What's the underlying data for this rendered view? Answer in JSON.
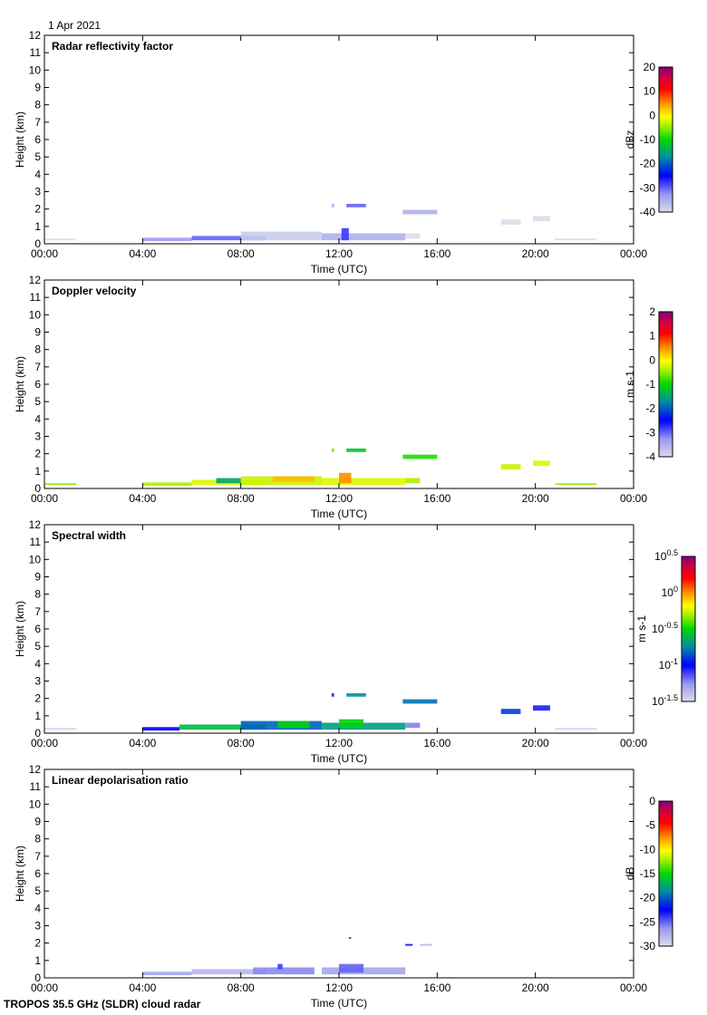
{
  "date_label": "1 Apr 2021",
  "footer_label": "TROPOS 35.5 GHz (SLDR) cloud radar",
  "chart_data": [
    {
      "type": "heatmap",
      "title": "Radar reflectivity factor",
      "xlabel": "Time (UTC)",
      "ylabel": "Height (km)",
      "xlim": [
        0,
        24
      ],
      "ylim": [
        0,
        12
      ],
      "xticks": [
        "00:00",
        "04:00",
        "08:00",
        "12:00",
        "16:00",
        "20:00",
        "00:00"
      ],
      "yticks": [
        "0",
        "1",
        "2",
        "3",
        "4",
        "5",
        "6",
        "7",
        "8",
        "9",
        "10",
        "11",
        "12"
      ],
      "colorbar": {
        "label": "dBz",
        "range": [
          -40,
          20
        ],
        "scale": "linear",
        "ticks": [
          "-40",
          "-30",
          "-20",
          "-10",
          "0",
          "10",
          "20"
        ]
      },
      "echoes": [
        [
          0.0,
          1.3,
          0.2,
          0.3,
          -42
        ],
        [
          4.0,
          6.0,
          0.15,
          0.35,
          -33
        ],
        [
          6.0,
          9.0,
          0.2,
          0.45,
          -30
        ],
        [
          8.0,
          11.3,
          0.2,
          0.7,
          -38
        ],
        [
          11.3,
          14.7,
          0.2,
          0.6,
          -35
        ],
        [
          12.1,
          12.4,
          0.2,
          0.9,
          -28
        ],
        [
          14.7,
          15.3,
          0.3,
          0.6,
          -41
        ],
        [
          11.7,
          11.8,
          2.1,
          2.3,
          -35
        ],
        [
          12.3,
          13.1,
          2.1,
          2.3,
          -30
        ],
        [
          14.6,
          16.0,
          1.7,
          1.95,
          -35
        ],
        [
          18.6,
          19.4,
          1.1,
          1.4,
          -41
        ],
        [
          19.9,
          20.6,
          1.3,
          1.6,
          -41
        ],
        [
          20.8,
          22.5,
          0.2,
          0.3,
          -43
        ]
      ]
    },
    {
      "type": "heatmap",
      "title": "Doppler velocity",
      "xlabel": "Time (UTC)",
      "ylabel": "Height (km)",
      "xlim": [
        0,
        24
      ],
      "ylim": [
        0,
        12
      ],
      "xticks": [
        "00:00",
        "04:00",
        "08:00",
        "12:00",
        "16:00",
        "20:00",
        "00:00"
      ],
      "yticks": [
        "0",
        "1",
        "2",
        "3",
        "4",
        "5",
        "6",
        "7",
        "8",
        "9",
        "10",
        "11",
        "12"
      ],
      "colorbar": {
        "label": "m s-1",
        "range": [
          -4,
          2
        ],
        "scale": "linear",
        "ticks": [
          "-4",
          "-3",
          "-2",
          "-1",
          "0",
          "1",
          "2"
        ]
      },
      "echoes": [
        [
          0.0,
          1.3,
          0.2,
          0.3,
          -0.5
        ],
        [
          4.0,
          6.0,
          0.15,
          0.35,
          -0.4
        ],
        [
          6.0,
          9.0,
          0.2,
          0.5,
          -0.2
        ],
        [
          7.0,
          8.0,
          0.3,
          0.6,
          -1.5
        ],
        [
          8.0,
          11.3,
          0.2,
          0.7,
          -0.3
        ],
        [
          9.3,
          11.0,
          0.4,
          0.7,
          0.3
        ],
        [
          11.3,
          14.7,
          0.2,
          0.6,
          -0.2
        ],
        [
          12.0,
          12.5,
          0.3,
          0.9,
          0.5
        ],
        [
          14.7,
          15.3,
          0.3,
          0.6,
          -0.4
        ],
        [
          11.7,
          11.8,
          2.1,
          2.3,
          -0.6
        ],
        [
          12.3,
          13.1,
          2.1,
          2.3,
          -1.2
        ],
        [
          14.6,
          16.0,
          1.7,
          1.95,
          -0.9
        ],
        [
          18.6,
          19.4,
          1.1,
          1.4,
          -0.3
        ],
        [
          19.9,
          20.6,
          1.3,
          1.6,
          -0.2
        ],
        [
          20.8,
          22.5,
          0.2,
          0.3,
          -0.5
        ]
      ]
    },
    {
      "type": "heatmap",
      "title": "Spectral width",
      "xlabel": "Time (UTC)",
      "ylabel": "Height (km)",
      "xlim": [
        0,
        24
      ],
      "ylim": [
        0,
        12
      ],
      "xticks": [
        "00:00",
        "04:00",
        "08:00",
        "12:00",
        "16:00",
        "20:00",
        "00:00"
      ],
      "yticks": [
        "0",
        "1",
        "2",
        "3",
        "4",
        "5",
        "6",
        "7",
        "8",
        "9",
        "10",
        "11",
        "12"
      ],
      "colorbar": {
        "label": "m s-1",
        "range": [
          0.0316,
          3.16
        ],
        "scale": "log",
        "ticks": [
          {
            "base": "10",
            "exp": "-1.5"
          },
          {
            "base": "10",
            "exp": "-1"
          },
          {
            "base": "10",
            "exp": "-0.5"
          },
          {
            "base": "10",
            "exp": "0"
          },
          {
            "base": "10",
            "exp": "0.5"
          }
        ]
      },
      "echoes": [
        [
          0.0,
          1.3,
          0.2,
          0.3,
          0.035
        ],
        [
          4.0,
          5.5,
          0.15,
          0.35,
          0.1
        ],
        [
          5.5,
          9.0,
          0.2,
          0.5,
          0.25
        ],
        [
          8.0,
          11.3,
          0.2,
          0.7,
          0.15
        ],
        [
          9.5,
          10.8,
          0.3,
          0.7,
          0.3
        ],
        [
          11.3,
          14.7,
          0.2,
          0.6,
          0.2
        ],
        [
          12.0,
          13.0,
          0.3,
          0.8,
          0.3
        ],
        [
          14.7,
          15.3,
          0.3,
          0.6,
          0.06
        ],
        [
          11.7,
          11.8,
          2.1,
          2.3,
          0.12
        ],
        [
          12.3,
          13.1,
          2.1,
          2.3,
          0.18
        ],
        [
          14.6,
          16.0,
          1.7,
          1.95,
          0.16
        ],
        [
          18.6,
          19.4,
          1.1,
          1.4,
          0.13
        ],
        [
          19.9,
          20.6,
          1.3,
          1.6,
          0.09
        ],
        [
          20.8,
          22.5,
          0.2,
          0.3,
          0.035
        ]
      ]
    },
    {
      "type": "heatmap",
      "title": "Linear depolarisation ratio",
      "xlabel": "Time (UTC)",
      "ylabel": "Height (km)",
      "xlim": [
        0,
        24
      ],
      "ylim": [
        0,
        12
      ],
      "xticks": [
        "00:00",
        "04:00",
        "08:00",
        "12:00",
        "16:00",
        "20:00",
        "00:00"
      ],
      "yticks": [
        "0",
        "1",
        "2",
        "3",
        "4",
        "5",
        "6",
        "7",
        "8",
        "9",
        "10",
        "11",
        "12"
      ],
      "colorbar": {
        "label": "dB",
        "range": [
          -30,
          0
        ],
        "scale": "linear",
        "ticks": [
          "-30",
          "-25",
          "-20",
          "-15",
          "-10",
          "-5",
          "0"
        ]
      },
      "echoes": [
        [
          4.0,
          6.0,
          0.15,
          0.35,
          -27
        ],
        [
          6.0,
          9.0,
          0.2,
          0.5,
          -28
        ],
        [
          8.5,
          11.0,
          0.2,
          0.6,
          -26
        ],
        [
          9.5,
          9.7,
          0.5,
          0.8,
          -24
        ],
        [
          11.3,
          14.7,
          0.2,
          0.6,
          -27
        ],
        [
          12.0,
          13.0,
          0.3,
          0.8,
          -25
        ],
        [
          12.4,
          12.5,
          2.25,
          2.35,
          -20
        ],
        [
          14.7,
          15.0,
          1.85,
          1.95,
          -22
        ],
        [
          15.3,
          15.8,
          1.85,
          1.95,
          -28
        ]
      ]
    }
  ]
}
